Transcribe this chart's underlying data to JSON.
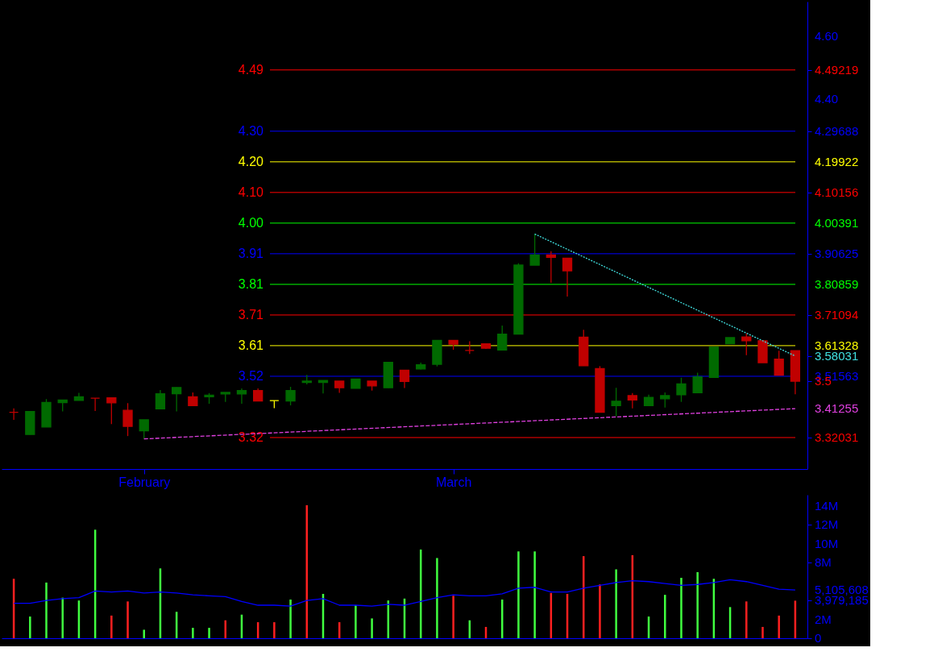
{
  "chart_data": [
    {
      "type": "candlestick",
      "categories": [
        null,
        null,
        null,
        null,
        null,
        null,
        null,
        null,
        "February",
        null,
        null,
        null,
        null,
        null,
        null,
        null,
        null,
        null,
        null,
        null,
        null,
        null,
        null,
        null,
        null,
        null,
        null,
        "March",
        null,
        null,
        null,
        null,
        null,
        null,
        null,
        null,
        null,
        null,
        null,
        null,
        null,
        null,
        null,
        null,
        null,
        null,
        null,
        null,
        null
      ],
      "ohlc": [
        [
          3.401,
          3.413,
          3.377,
          3.401
        ],
        [
          3.33,
          3.403,
          3.33,
          3.403
        ],
        [
          3.354,
          3.443,
          3.354,
          3.432
        ],
        [
          3.432,
          3.44,
          3.404,
          3.44
        ],
        [
          3.439,
          3.463,
          3.439,
          3.45
        ],
        [
          3.446,
          3.446,
          3.405,
          3.446
        ],
        [
          3.447,
          3.447,
          3.363,
          3.431
        ],
        [
          3.407,
          3.43,
          3.325,
          3.356
        ],
        [
          3.342,
          3.377,
          3.316,
          3.377
        ],
        [
          3.412,
          3.472,
          3.412,
          3.46
        ],
        [
          3.46,
          3.48,
          3.404,
          3.48
        ],
        [
          3.45,
          3.464,
          3.422,
          3.422
        ],
        [
          3.45,
          3.462,
          3.428,
          3.455
        ],
        [
          3.459,
          3.464,
          3.434,
          3.464
        ],
        [
          3.459,
          3.477,
          3.428,
          3.47
        ],
        [
          3.47,
          3.477,
          3.437,
          3.437
        ],
        [
          3.438,
          3.438,
          3.414,
          3.438
        ],
        [
          3.437,
          3.482,
          3.423,
          3.47
        ],
        [
          3.496,
          3.52,
          3.49,
          3.5
        ],
        [
          3.496,
          3.502,
          3.461,
          3.502
        ],
        [
          3.5,
          3.5,
          3.463,
          3.479
        ],
        [
          3.477,
          3.507,
          3.477,
          3.507
        ],
        [
          3.5,
          3.5,
          3.47,
          3.485
        ],
        [
          3.479,
          3.56,
          3.479,
          3.56
        ],
        [
          3.535,
          3.535,
          3.478,
          3.499
        ],
        [
          3.539,
          3.559,
          3.537,
          3.552
        ],
        [
          3.554,
          3.63,
          3.547,
          3.63
        ],
        [
          3.63,
          3.63,
          3.6,
          3.618
        ],
        [
          3.598,
          3.627,
          3.587,
          3.598
        ],
        [
          3.619,
          3.619,
          3.603,
          3.605
        ],
        [
          3.599,
          3.677,
          3.599,
          3.65
        ],
        [
          3.65,
          3.876,
          3.65,
          3.87
        ],
        [
          3.87,
          3.969,
          3.87,
          3.902
        ],
        [
          3.902,
          3.914,
          3.814,
          3.895
        ],
        [
          3.892,
          3.892,
          3.77,
          3.852
        ],
        [
          3.64,
          3.664,
          3.549,
          3.549
        ],
        [
          3.54,
          3.548,
          3.401,
          3.401
        ],
        [
          3.422,
          3.479,
          3.388,
          3.436
        ],
        [
          3.454,
          3.462,
          3.413,
          3.44
        ],
        [
          3.422,
          3.457,
          3.422,
          3.448
        ],
        [
          3.444,
          3.464,
          3.416,
          3.454
        ],
        [
          3.457,
          3.511,
          3.434,
          3.491
        ],
        [
          3.463,
          3.527,
          3.463,
          3.514
        ],
        [
          3.512,
          3.609,
          3.512,
          3.609
        ],
        [
          3.619,
          3.639,
          3.619,
          3.639
        ],
        [
          3.641,
          3.653,
          3.583,
          3.629
        ],
        [
          3.629,
          3.629,
          3.559,
          3.559
        ],
        [
          3.57,
          3.597,
          3.519,
          3.519
        ],
        [
          3.597,
          3.597,
          3.458,
          3.5
        ]
      ],
      "colors": [
        "#c00000",
        "#006a00",
        "#006a00",
        "#006a00",
        "#006a00",
        "#c00000",
        "#c00000",
        "#c00000",
        "#006a00",
        "#006a00",
        "#006a00",
        "#c00000",
        "#006a00",
        "#006a00",
        "#006a00",
        "#c00000",
        "#ffff00",
        "#006a00",
        "#006a00",
        "#006a00",
        "#c00000",
        "#006a00",
        "#c00000",
        "#006a00",
        "#c00000",
        "#006a00",
        "#006a00",
        "#c00000",
        "#c00000",
        "#c00000",
        "#006a00",
        "#006a00",
        "#006a00",
        "#c00000",
        "#c00000",
        "#c00000",
        "#c00000",
        "#006a00",
        "#c00000",
        "#006a00",
        "#006a00",
        "#006a00",
        "#006a00",
        "#006a00",
        "#006a00",
        "#c00000",
        "#c00000",
        "#c00000",
        "#c00000"
      ],
      "series": [
        {
          "type": "line",
          "color": "#40e0e0",
          "line_style": "dotted",
          "values": [
            null,
            null,
            null,
            null,
            null,
            null,
            null,
            null,
            null,
            null,
            null,
            null,
            null,
            null,
            null,
            null,
            null,
            null,
            null,
            null,
            null,
            null,
            null,
            null,
            null,
            null,
            null,
            null,
            null,
            null,
            null,
            null,
            3.969,
            null,
            null,
            null,
            null,
            null,
            null,
            null,
            null,
            null,
            null,
            null,
            null,
            null,
            null,
            null,
            3.58031
          ]
        },
        {
          "type": "line",
          "color": "#e040e0",
          "line_style": "dashed",
          "values": [
            null,
            null,
            null,
            null,
            null,
            null,
            null,
            null,
            3.316,
            null,
            null,
            null,
            null,
            null,
            null,
            null,
            null,
            null,
            null,
            null,
            null,
            null,
            null,
            null,
            null,
            null,
            null,
            null,
            null,
            null,
            null,
            null,
            null,
            null,
            null,
            null,
            null,
            null,
            null,
            null,
            null,
            null,
            null,
            null,
            null,
            null,
            null,
            null,
            3.41255
          ]
        }
      ],
      "ref_lines": [
        {
          "axis": "y",
          "value": 4.49219,
          "label": "4.49",
          "color": "#ff0000"
        },
        {
          "axis": "y",
          "value": 4.29688,
          "label": "4.30",
          "color": "#0000ff"
        },
        {
          "axis": "y",
          "value": 4.19922,
          "label": "4.20",
          "color": "#ffff00"
        },
        {
          "axis": "y",
          "value": 4.10156,
          "label": "4.10",
          "color": "#ff0000"
        },
        {
          "axis": "y",
          "value": 4.00391,
          "label": "4.00",
          "color": "#00ff00"
        },
        {
          "axis": "y",
          "value": 3.90625,
          "label": "3.91",
          "color": "#0000ff"
        },
        {
          "axis": "y",
          "value": 3.80859,
          "label": "3.81",
          "color": "#00ff00"
        },
        {
          "axis": "y",
          "value": 3.71094,
          "label": "3.71",
          "color": "#ff0000"
        },
        {
          "axis": "y",
          "value": 3.61328,
          "label": "3.61",
          "color": "#ffff00"
        },
        {
          "axis": "y",
          "value": 3.51563,
          "label": "3.52",
          "color": "#0000ff"
        },
        {
          "axis": "y",
          "value": 3.32031,
          "label": "3.32",
          "color": "#ff0000"
        }
      ],
      "ylim": [
        3.22,
        4.71
      ],
      "yticks": [
        {
          "value": 4.6,
          "label": "4.60"
        },
        {
          "value": 4.4,
          "label": "4.40"
        },
        4.49219,
        4.29688,
        4.19922,
        4.10156,
        4.00391,
        3.90625,
        3.80859,
        3.71094,
        3.61328,
        3.58031,
        3.51563,
        3.5,
        3.41255,
        3.32031
      ],
      "grid": false
    },
    {
      "type": "bar",
      "categories": [
        null,
        null,
        null,
        null,
        null,
        null,
        null,
        null,
        null,
        null,
        null,
        null,
        null,
        null,
        null,
        null,
        null,
        null,
        null,
        null,
        null,
        null,
        null,
        null,
        null,
        null,
        null,
        null,
        null,
        null,
        null,
        null,
        null,
        null,
        null,
        null,
        null,
        null,
        null,
        null,
        null,
        null,
        null,
        null,
        null,
        null,
        null,
        null,
        null
      ],
      "series": [
        {
          "type": "bar",
          "values": [
            6300000,
            2300000,
            5900000,
            4300000,
            4000000,
            11500000,
            2400000,
            3900000,
            900000,
            7400000,
            2800000,
            1100000,
            1100000,
            1900000,
            2500000,
            1700000,
            1700000,
            4100000,
            14100000,
            4700000,
            1700000,
            3500000,
            2100000,
            4000000,
            4200000,
            9400000,
            8500000,
            4500000,
            1900000,
            1200000,
            4100000,
            9200000,
            9200000,
            4800000,
            4700000,
            8700000,
            5700000,
            7300000,
            8800000,
            2300000,
            4600000,
            6400000,
            7000000,
            6300000,
            3300000,
            3900000,
            1200000,
            2400000,
            3979185
          ],
          "colors": [
            "#ff2020",
            "#40ff40",
            "#40ff40",
            "#40ff40",
            "#40ff40",
            "#40ff40",
            "#ff2020",
            "#ff2020",
            "#40ff40",
            "#40ff40",
            "#40ff40",
            "#40ff40",
            "#40ff40",
            "#ff2020",
            "#40ff40",
            "#ff2020",
            "#ff2020",
            "#40ff40",
            "#ff2020",
            "#40ff40",
            "#ff2020",
            "#40ff40",
            "#40ff40",
            "#40ff40",
            "#40ff40",
            "#40ff40",
            "#40ff40",
            "#ff2020",
            "#40ff40",
            "#ff2020",
            "#40ff40",
            "#40ff40",
            "#40ff40",
            "#ff2020",
            "#ff2020",
            "#ff2020",
            "#ff2020",
            "#40ff40",
            "#ff2020",
            "#40ff40",
            "#40ff40",
            "#40ff40",
            "#40ff40",
            "#40ff40",
            "#40ff40",
            "#ff2020",
            "#ff2020",
            "#ff2020",
            "#ff2020"
          ]
        },
        {
          "type": "line",
          "color": "#0000ff",
          "values": [
            3700000,
            3700000,
            4000000,
            4200000,
            4300000,
            5000000,
            4900000,
            5000000,
            4800000,
            4900000,
            4800000,
            4600000,
            4500000,
            4400000,
            3900000,
            3500000,
            3500000,
            3400000,
            4000000,
            4200000,
            3500000,
            3500000,
            3400000,
            3600000,
            3500000,
            3900000,
            4300000,
            4600000,
            4500000,
            4500000,
            4700000,
            5300000,
            5400000,
            4900000,
            4900000,
            5300000,
            5600000,
            5900000,
            6100000,
            6000000,
            5800000,
            5600000,
            5700000,
            5900000,
            6200000,
            6000000,
            5600000,
            5200000,
            5105608
          ]
        }
      ],
      "ylim": [
        0,
        15200000
      ],
      "yticks": [
        0,
        {
          "value": 2000000,
          "label": "2M"
        },
        {
          "value": 8000000,
          "label": "8M"
        },
        {
          "value": 10000000,
          "label": "10M"
        },
        {
          "value": 12000000,
          "label": "12M"
        },
        {
          "value": 14000000,
          "label": "14M"
        },
        {
          "value": 5105608,
          "label": "5,105,608"
        },
        {
          "value": 3979185,
          "label": "3,979,185"
        }
      ],
      "tick_labels": "y",
      "grid": false
    }
  ]
}
